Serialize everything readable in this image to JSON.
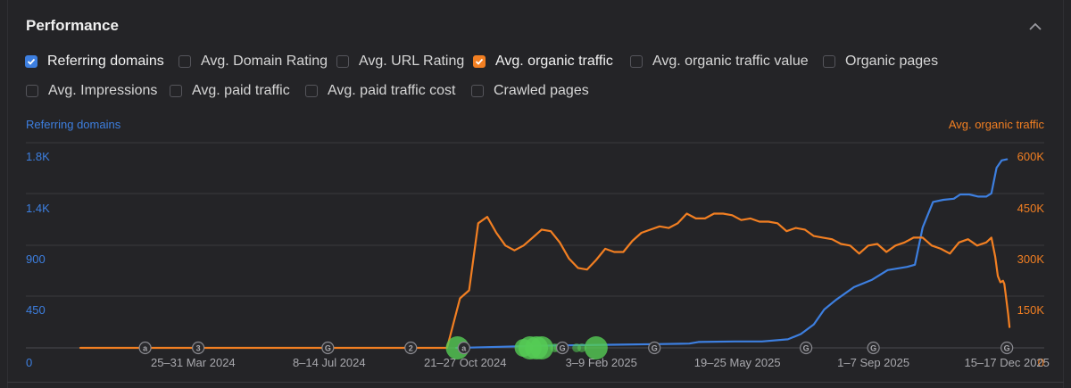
{
  "panel": {
    "title": "Performance"
  },
  "metrics": [
    {
      "label": "Referring domains",
      "checked": true,
      "color": "#3d7fe0"
    },
    {
      "label": "Avg. Domain Rating",
      "checked": false
    },
    {
      "label": "Avg. URL Rating",
      "checked": false
    },
    {
      "label": "Avg. organic traffic",
      "checked": true,
      "color": "#f27f22"
    },
    {
      "label": "Avg. organic traffic value",
      "checked": false
    },
    {
      "label": "Organic pages",
      "checked": false
    },
    {
      "label": "Avg. Impressions",
      "checked": false
    },
    {
      "label": "Avg. paid traffic",
      "checked": false
    },
    {
      "label": "Avg. paid traffic cost",
      "checked": false
    },
    {
      "label": "Crawled pages",
      "checked": false
    }
  ],
  "chart_data": {
    "type": "line",
    "grid": true,
    "colors": {
      "referring_domains": "#3d7fe0",
      "organic_traffic": "#f27f22",
      "grid": "#3a3a3e",
      "annotation_marker": "#55cc55"
    },
    "left_axis": {
      "label": "Referring domains",
      "ticks": [
        "0",
        "450",
        "900",
        "1.4K",
        "1.8K"
      ],
      "range": [
        0,
        1800
      ]
    },
    "right_axis": {
      "label": "Avg. organic traffic",
      "ticks": [
        "0",
        "150K",
        "300K",
        "450K",
        "600K"
      ],
      "range": [
        0,
        600000
      ]
    },
    "x_axis": {
      "range": [
        "2024-01-01",
        "2025-12-20"
      ],
      "tick_labels": [
        {
          "text": "25–31 Mar 2024",
          "date": "2024-03-28"
        },
        {
          "text": "8–14 Jul 2024",
          "date": "2024-07-11"
        },
        {
          "text": "21–27 Oct 2024",
          "date": "2024-10-24"
        },
        {
          "text": "3–9 Feb 2025",
          "date": "2025-02-06"
        },
        {
          "text": "19–25 May 2025",
          "date": "2025-05-22"
        },
        {
          "text": "1–7 Sep 2025",
          "date": "2025-09-04"
        },
        {
          "text": "15–17 Dec 2025",
          "date": "2025-12-16"
        }
      ]
    },
    "series": [
      {
        "name": "Referring domains",
        "axis": "left",
        "points": [
          [
            "2024-10-17",
            0
          ],
          [
            "2024-10-24",
            2
          ],
          [
            "2024-11-20",
            10
          ],
          [
            "2024-12-20",
            20
          ],
          [
            "2025-01-20",
            25
          ],
          [
            "2025-02-20",
            30
          ],
          [
            "2025-03-20",
            35
          ],
          [
            "2025-04-15",
            40
          ],
          [
            "2025-04-22",
            55
          ],
          [
            "2025-05-20",
            60
          ],
          [
            "2025-06-10",
            60
          ],
          [
            "2025-06-30",
            80
          ],
          [
            "2025-07-10",
            130
          ],
          [
            "2025-07-20",
            220
          ],
          [
            "2025-07-28",
            360
          ],
          [
            "2025-08-06",
            450
          ],
          [
            "2025-08-20",
            570
          ],
          [
            "2025-09-03",
            640
          ],
          [
            "2025-09-15",
            730
          ],
          [
            "2025-09-30",
            760
          ],
          [
            "2025-10-06",
            780
          ],
          [
            "2025-10-12",
            1130
          ],
          [
            "2025-10-20",
            1370
          ],
          [
            "2025-10-28",
            1390
          ],
          [
            "2025-11-05",
            1400
          ],
          [
            "2025-11-10",
            1440
          ],
          [
            "2025-11-17",
            1440
          ],
          [
            "2025-11-24",
            1420
          ],
          [
            "2025-11-30",
            1420
          ],
          [
            "2025-12-04",
            1450
          ],
          [
            "2025-12-08",
            1690
          ],
          [
            "2025-12-12",
            1760
          ],
          [
            "2025-12-16",
            1770
          ]
        ]
      },
      {
        "name": "Avg. organic traffic",
        "axis": "right",
        "points": [
          [
            "2024-01-01",
            0
          ],
          [
            "2024-10-10",
            0
          ],
          [
            "2024-10-20",
            155000
          ],
          [
            "2024-10-27",
            180000
          ],
          [
            "2024-11-03",
            390000
          ],
          [
            "2024-11-10",
            410000
          ],
          [
            "2024-11-17",
            360000
          ],
          [
            "2024-11-24",
            320000
          ],
          [
            "2024-12-01",
            305000
          ],
          [
            "2024-12-08",
            320000
          ],
          [
            "2024-12-15",
            345000
          ],
          [
            "2024-12-22",
            370000
          ],
          [
            "2024-12-29",
            365000
          ],
          [
            "2025-01-05",
            330000
          ],
          [
            "2025-01-12",
            280000
          ],
          [
            "2025-01-19",
            250000
          ],
          [
            "2025-01-26",
            245000
          ],
          [
            "2025-02-02",
            275000
          ],
          [
            "2025-02-09",
            310000
          ],
          [
            "2025-02-16",
            300000
          ],
          [
            "2025-02-23",
            300000
          ],
          [
            "2025-03-02",
            335000
          ],
          [
            "2025-03-09",
            360000
          ],
          [
            "2025-03-16",
            370000
          ],
          [
            "2025-03-23",
            380000
          ],
          [
            "2025-03-30",
            375000
          ],
          [
            "2025-04-06",
            390000
          ],
          [
            "2025-04-13",
            420000
          ],
          [
            "2025-04-20",
            405000
          ],
          [
            "2025-04-27",
            405000
          ],
          [
            "2025-05-04",
            420000
          ],
          [
            "2025-05-11",
            420000
          ],
          [
            "2025-05-18",
            415000
          ],
          [
            "2025-05-25",
            400000
          ],
          [
            "2025-06-01",
            405000
          ],
          [
            "2025-06-08",
            395000
          ],
          [
            "2025-06-15",
            395000
          ],
          [
            "2025-06-22",
            390000
          ],
          [
            "2025-06-29",
            365000
          ],
          [
            "2025-07-06",
            375000
          ],
          [
            "2025-07-13",
            370000
          ],
          [
            "2025-07-20",
            350000
          ],
          [
            "2025-07-27",
            345000
          ],
          [
            "2025-08-03",
            340000
          ],
          [
            "2025-08-10",
            325000
          ],
          [
            "2025-08-17",
            320000
          ],
          [
            "2025-08-24",
            295000
          ],
          [
            "2025-08-31",
            320000
          ],
          [
            "2025-09-07",
            325000
          ],
          [
            "2025-09-14",
            300000
          ],
          [
            "2025-09-21",
            320000
          ],
          [
            "2025-09-28",
            330000
          ],
          [
            "2025-10-05",
            345000
          ],
          [
            "2025-10-12",
            345000
          ],
          [
            "2025-10-19",
            320000
          ],
          [
            "2025-10-26",
            310000
          ],
          [
            "2025-11-02",
            295000
          ],
          [
            "2025-11-09",
            330000
          ],
          [
            "2025-11-16",
            340000
          ],
          [
            "2025-11-23",
            320000
          ],
          [
            "2025-11-30",
            330000
          ],
          [
            "2025-12-04",
            345000
          ],
          [
            "2025-12-07",
            285000
          ],
          [
            "2025-12-09",
            225000
          ],
          [
            "2025-12-11",
            205000
          ],
          [
            "2025-12-13",
            210000
          ],
          [
            "2025-12-14",
            200000
          ],
          [
            "2025-12-15",
            170000
          ],
          [
            "2025-12-17",
            105000
          ],
          [
            "2025-12-18",
            65000
          ]
        ]
      }
    ],
    "event_markers": [
      {
        "date": "2024-02-20",
        "label": "a"
      },
      {
        "date": "2024-04-01",
        "label": "3"
      },
      {
        "date": "2024-07-10",
        "label": "G"
      },
      {
        "date": "2024-09-12",
        "label": "2"
      },
      {
        "date": "2024-10-23",
        "label": "a"
      },
      {
        "date": "2025-01-07",
        "label": "G"
      },
      {
        "date": "2025-03-19",
        "label": "G"
      },
      {
        "date": "2025-07-14",
        "label": "G"
      },
      {
        "date": "2025-09-04",
        "label": "G"
      },
      {
        "date": "2025-12-16",
        "label": "G"
      }
    ],
    "bubbles": [
      {
        "date": "2024-10-18",
        "size": 3
      },
      {
        "date": "2024-12-08",
        "size": 2
      },
      {
        "date": "2024-12-13",
        "size": 3
      },
      {
        "date": "2024-12-18",
        "size": 3
      },
      {
        "date": "2024-12-22",
        "size": 3
      },
      {
        "date": "2025-01-01",
        "size": 1
      },
      {
        "date": "2025-01-04",
        "size": 1
      },
      {
        "date": "2025-01-18",
        "size": 1
      },
      {
        "date": "2025-01-22",
        "size": 1
      },
      {
        "date": "2025-02-02",
        "size": 3
      }
    ]
  }
}
